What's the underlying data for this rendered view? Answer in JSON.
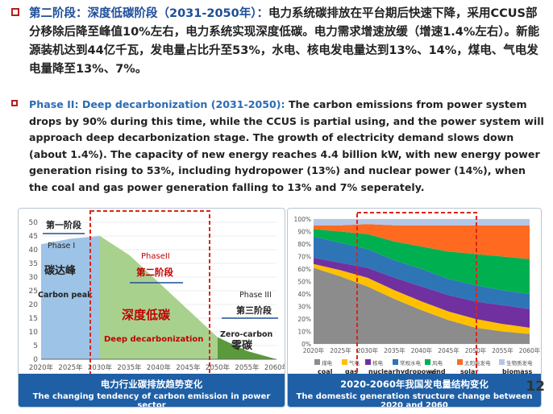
{
  "text_cn": {
    "heading": "第二阶段：深度低碳阶段（2031-2050年）：",
    "body": "电力系统碳排放在平台期后快速下降，采用CCUS部分移除后降至峰值10%左右，电力系统实现深度低碳。电力需求增速放缓（增速1.4%左右）。新能源装机达到44亿千瓦，发电量占比升至53%，水电、核电发电量达到13%、14%，煤电、气电发电量降至13%、7%。"
  },
  "text_en": {
    "heading": "Phase II: Deep decarbonization (2031-2050):",
    "body": " The carbon emissions from power system drops by 90% during this time, while the CCUS is partial using, and the power system will approach deep decarbonization stage. The growth of electricity demand slows down (about 1.4%). The capacity of new energy reaches 4.4 billion kW, with new energy power generation rising to 53%, including hydropower (13%) and nuclear power (14%), when the coal and gas power generation falling to 13% and 7% seperately."
  },
  "left_chart": {
    "caption_cn": "电力行业碳排放趋势变化",
    "caption_en": "The changing tendency of carbon emission in power sector",
    "y_ticks": [
      "50",
      "45",
      "40",
      "35",
      "30",
      "25",
      "20",
      "15",
      "10",
      "5",
      "0"
    ],
    "x_ticks": [
      "2020年",
      "2025年",
      "2030年",
      "2035年",
      "2040年",
      "2045年",
      "2050年",
      "2055年",
      "2060年"
    ],
    "phase1_cn": "第一阶段",
    "phase1_en": "Phase I",
    "peak_cn": "碳达峰",
    "peak_en": "Carbon peak",
    "phase2_en": "PhaseII",
    "phase2_cn": "第二阶段",
    "deep_cn": "深度低碳",
    "deep_en": "Deep decarbonization",
    "phase3_en": "Phase III",
    "phase3_cn": "第三阶段",
    "zero_en": "Zero-carbon",
    "zero_cn": "零碳"
  },
  "right_chart": {
    "caption_cn": "2020-2060年我国发电量结构变化",
    "caption_en": "The domestic generation structure change between 2020 and 2060",
    "y_ticks": [
      "100%",
      "90%",
      "80%",
      "70%",
      "60%",
      "50%",
      "40%",
      "30%",
      "20%",
      "10%",
      "0%"
    ],
    "x_ticks": [
      "2020年",
      "2025年",
      "2030年",
      "2035年",
      "2040年",
      "2045年",
      "2050年",
      "2055年",
      "2060年"
    ],
    "legend": [
      {
        "cn": "煤电",
        "en": "coal",
        "color": "#8c8c8c"
      },
      {
        "cn": "气电",
        "en": "gas",
        "color": "#ffc000"
      },
      {
        "cn": "核电",
        "en": "nuclear",
        "color": "#7030a0"
      },
      {
        "cn": "常规水电",
        "en": "hydropower",
        "color": "#2e75b6"
      },
      {
        "cn": "风电",
        "en": "wind",
        "color": "#00b050"
      },
      {
        "cn": "太阳能发电",
        "en": "solar",
        "color": "#ff6a20"
      },
      {
        "cn": "生物质发电",
        "en": "biomass",
        "color": "#b4c7e7"
      }
    ]
  },
  "chart_data": [
    {
      "type": "area",
      "title": "电力行业碳排放趋势变化",
      "x": [
        2020,
        2025,
        2030,
        2035,
        2040,
        2045,
        2050,
        2055,
        2060
      ],
      "series": [
        {
          "values": [
            42,
            44,
            45,
            38,
            28,
            18,
            8,
            3,
            0
          ]
        }
      ],
      "ylim": [
        0,
        50
      ]
    },
    {
      "type": "area",
      "title": "2020-2060年我国发电量结构变化",
      "x": [
        2020,
        2025,
        2030,
        2035,
        2040,
        2045,
        2050,
        2055,
        2060
      ],
      "series": [
        {
          "name": "煤电 coal",
          "values": [
            61,
            54,
            46,
            36,
            27,
            19,
            13,
            10,
            8
          ]
        },
        {
          "name": "气电 gas",
          "values": [
            3,
            5,
            7,
            7,
            7,
            7,
            7,
            6,
            5
          ]
        },
        {
          "name": "核电 nuclear",
          "values": [
            5,
            6,
            8,
            10,
            12,
            13,
            14,
            15,
            15
          ]
        },
        {
          "name": "常规水电 hydropower",
          "values": [
            17,
            16,
            15,
            14,
            14,
            13,
            13,
            12,
            12
          ]
        },
        {
          "name": "风电 wind",
          "values": [
            6,
            9,
            12,
            15,
            18,
            22,
            25,
            27,
            28
          ]
        },
        {
          "name": "太阳能发电 solar",
          "values": [
            3,
            5,
            8,
            13,
            17,
            21,
            23,
            25,
            27
          ]
        },
        {
          "name": "生物质发电 biomass",
          "values": [
            5,
            5,
            4,
            5,
            5,
            5,
            5,
            5,
            5
          ]
        }
      ],
      "ylim": [
        0,
        100
      ]
    }
  ]
}
